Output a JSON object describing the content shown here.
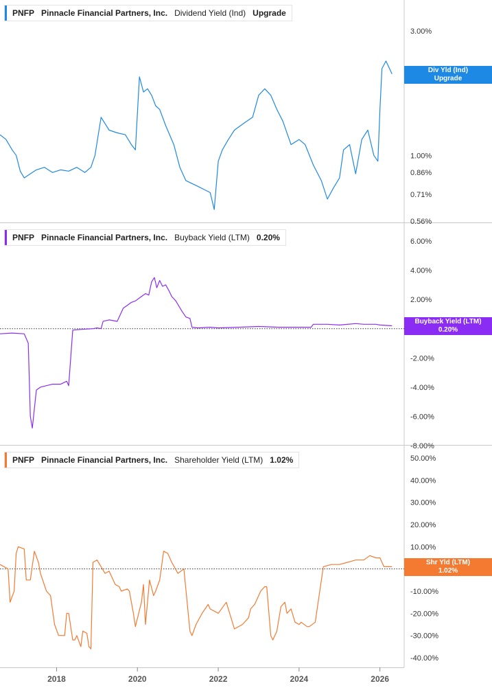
{
  "chart_data": [
    {
      "type": "line",
      "ticker": "PNFP",
      "company": "Pinnacle Financial Partners, Inc.",
      "metric": "Dividend Yield (Ind)",
      "value": "Upgrade",
      "tag_label": "Div Yld (Ind)",
      "tag_value": "Upgrade",
      "color": "#1e88e5",
      "scale": "log",
      "ylim": [
        0.56,
        4.0
      ],
      "yticks": [
        {
          "v": 3.0,
          "label": "3.00%"
        },
        {
          "v": 1.0,
          "label": "1.00%"
        },
        {
          "v": 0.86,
          "label": "0.86%"
        },
        {
          "v": 0.71,
          "label": "0.71%"
        },
        {
          "v": 0.56,
          "label": "0.56%"
        }
      ],
      "x": [
        2016.6,
        2016.75,
        2016.9,
        2017.0,
        2017.1,
        2017.2,
        2017.35,
        2017.5,
        2017.7,
        2017.9,
        2018.1,
        2018.3,
        2018.5,
        2018.7,
        2018.85,
        2018.95,
        2019.1,
        2019.3,
        2019.5,
        2019.7,
        2019.85,
        2019.95,
        2020.05,
        2020.15,
        2020.25,
        2020.35,
        2020.45,
        2020.55,
        2020.7,
        2020.9,
        2021.05,
        2021.2,
        2021.35,
        2021.5,
        2021.65,
        2021.8,
        2021.9,
        2022.0,
        2022.1,
        2022.25,
        2022.4,
        2022.55,
        2022.7,
        2022.85,
        2023.0,
        2023.15,
        2023.3,
        2023.45,
        2023.6,
        2023.8,
        2024.0,
        2024.15,
        2024.35,
        2024.55,
        2024.7,
        2024.85,
        2025.0,
        2025.1,
        2025.25,
        2025.4,
        2025.55,
        2025.7,
        2025.85,
        2025.95,
        2026.0,
        2026.05,
        2026.15,
        2026.3
      ],
      "values": [
        1.2,
        1.15,
        1.05,
        1.0,
        0.87,
        0.82,
        0.85,
        0.88,
        0.9,
        0.86,
        0.88,
        0.87,
        0.9,
        0.86,
        0.9,
        1.0,
        1.4,
        1.25,
        1.22,
        1.2,
        1.1,
        1.05,
        2.0,
        1.75,
        1.8,
        1.7,
        1.55,
        1.5,
        1.3,
        1.1,
        0.9,
        0.8,
        0.78,
        0.76,
        0.74,
        0.72,
        0.62,
        0.95,
        1.05,
        1.15,
        1.25,
        1.3,
        1.35,
        1.4,
        1.7,
        1.8,
        1.7,
        1.5,
        1.35,
        1.1,
        1.15,
        1.1,
        0.92,
        0.8,
        0.68,
        0.75,
        0.82,
        1.05,
        1.1,
        0.85,
        1.15,
        1.25,
        1.0,
        0.95,
        1.5,
        2.15,
        2.3,
        2.05
      ],
      "baseline": null
    },
    {
      "type": "line",
      "ticker": "PNFP",
      "company": "Pinnacle Financial Partners, Inc.",
      "metric": "Buyback Yield (LTM)",
      "value": "0.20%",
      "tag_label": "Buyback Yield (LTM)",
      "tag_value": "0.20%",
      "color": "#8b2cf5",
      "scale": "linear",
      "ylim": [
        -8.0,
        6.0
      ],
      "yticks": [
        {
          "v": 6,
          "label": "6.00%"
        },
        {
          "v": 4,
          "label": "4.00%"
        },
        {
          "v": 2,
          "label": "2.00%"
        },
        {
          "v": 0,
          "label": "0.00%"
        },
        {
          "v": -2,
          "label": "-2.00%"
        },
        {
          "v": -4,
          "label": "-4.00%"
        },
        {
          "v": -6,
          "label": "-6.00%"
        },
        {
          "v": -8,
          "label": "-8.00%"
        }
      ],
      "x": [
        2016.6,
        2016.9,
        2017.2,
        2017.3,
        2017.35,
        2017.4,
        2017.5,
        2017.6,
        2017.75,
        2017.9,
        2018.1,
        2018.25,
        2018.3,
        2018.4,
        2018.6,
        2018.9,
        2019.0,
        2019.1,
        2019.15,
        2019.3,
        2019.5,
        2019.65,
        2019.75,
        2019.85,
        2019.95,
        2020.05,
        2020.15,
        2020.2,
        2020.28,
        2020.35,
        2020.42,
        2020.48,
        2020.55,
        2020.62,
        2020.7,
        2020.78,
        2020.85,
        2020.95,
        2021.1,
        2021.2,
        2021.3,
        2021.35,
        2021.5,
        2021.8,
        2022.0,
        2022.5,
        2023.0,
        2023.5,
        2024.0,
        2024.3,
        2024.35,
        2024.7,
        2025.0,
        2025.4,
        2025.6,
        2025.9,
        2026.0,
        2026.3
      ],
      "values": [
        -0.35,
        -0.3,
        -0.35,
        -1.0,
        -6.0,
        -6.8,
        -4.2,
        -4.0,
        -3.9,
        -3.8,
        -3.8,
        -3.6,
        -3.9,
        -0.1,
        -0.05,
        0.0,
        0.05,
        0.0,
        0.5,
        0.6,
        0.5,
        1.4,
        1.6,
        1.8,
        1.9,
        2.1,
        2.3,
        2.4,
        2.3,
        3.2,
        3.5,
        2.8,
        3.3,
        2.9,
        3.0,
        2.6,
        2.2,
        1.9,
        1.2,
        0.8,
        0.7,
        0.1,
        0.05,
        0.1,
        0.05,
        0.1,
        0.15,
        0.1,
        0.1,
        0.1,
        0.3,
        0.3,
        0.25,
        0.35,
        0.3,
        0.3,
        0.25,
        0.2
      ],
      "baseline": 0
    },
    {
      "type": "line",
      "ticker": "PNFP",
      "company": "Pinnacle Financial Partners, Inc.",
      "metric": "Shareholder Yield (LTM)",
      "value": "1.02%",
      "tag_label": "Shr Yld (LTM)",
      "tag_value": "1.02%",
      "color": "#f47a32",
      "scale": "linear",
      "ylim": [
        -41.0,
        52.0
      ],
      "yticks": [
        {
          "v": 50,
          "label": "50.00%"
        },
        {
          "v": 40,
          "label": "40.00%"
        },
        {
          "v": 30,
          "label": "30.00%"
        },
        {
          "v": 20,
          "label": "20.00%"
        },
        {
          "v": 10,
          "label": "10.00%"
        },
        {
          "v": 0,
          "label": "0.00%"
        },
        {
          "v": -10,
          "label": "-10.00%"
        },
        {
          "v": -20,
          "label": "-20.00%"
        },
        {
          "v": -30,
          "label": "-30.00%"
        },
        {
          "v": -40,
          "label": "-40.00%"
        }
      ],
      "x": [
        2016.6,
        2016.8,
        2016.85,
        2016.95,
        2017.0,
        2017.05,
        2017.2,
        2017.25,
        2017.35,
        2017.45,
        2017.55,
        2017.6,
        2017.75,
        2017.85,
        2017.95,
        2018.05,
        2018.1,
        2018.2,
        2018.25,
        2018.3,
        2018.4,
        2018.45,
        2018.5,
        2018.6,
        2018.65,
        2018.75,
        2018.8,
        2018.85,
        2018.9,
        2019.0,
        2019.2,
        2019.3,
        2019.45,
        2019.55,
        2019.6,
        2019.75,
        2019.8,
        2019.9,
        2019.95,
        2020.1,
        2020.15,
        2020.2,
        2020.3,
        2020.4,
        2020.45,
        2020.55,
        2020.65,
        2020.75,
        2020.85,
        2021.0,
        2021.15,
        2021.3,
        2021.35,
        2021.45,
        2021.6,
        2021.75,
        2021.8,
        2022.0,
        2022.2,
        2022.4,
        2022.6,
        2022.75,
        2022.8,
        2022.9,
        2023.05,
        2023.15,
        2023.2,
        2023.3,
        2023.35,
        2023.45,
        2023.55,
        2023.65,
        2023.7,
        2023.8,
        2023.9,
        2024.0,
        2024.05,
        2024.2,
        2024.25,
        2024.4,
        2024.6,
        2024.8,
        2025.0,
        2025.2,
        2025.4,
        2025.6,
        2025.75,
        2025.9,
        2025.95,
        2026.0,
        2026.1,
        2026.3
      ],
      "values": [
        2,
        0,
        -15,
        -10,
        7,
        10,
        9,
        -5,
        -5,
        8,
        3,
        -2,
        -10,
        -12,
        -25,
        -30,
        -30,
        -30,
        -20,
        -20,
        -32,
        -32,
        -30,
        -35,
        -28,
        -29,
        -35,
        -36,
        3,
        4,
        -2,
        -1,
        -7,
        -8,
        -10,
        -9,
        -10,
        -20,
        -26,
        -15,
        -7,
        -25,
        -5,
        -12,
        -10,
        -5,
        8,
        7,
        3,
        -2,
        0,
        -28,
        -30,
        -25,
        -20,
        -16,
        -18,
        -20,
        -15,
        -27,
        -25,
        -22,
        -18,
        -16,
        -10,
        -8,
        -8,
        -30,
        -32,
        -28,
        -17,
        -15,
        -20,
        -18,
        -24,
        -25,
        -24,
        -26,
        -26,
        -24,
        1,
        2,
        2,
        3,
        4,
        4,
        6,
        5,
        5,
        5,
        1,
        1
      ],
      "baseline": 0
    }
  ],
  "x_axis": {
    "ticks": [
      {
        "v": 2018,
        "label": "2018"
      },
      {
        "v": 2020,
        "label": "2020"
      },
      {
        "v": 2022,
        "label": "2022"
      },
      {
        "v": 2024,
        "label": "2024"
      },
      {
        "v": 2026,
        "label": "2026"
      }
    ]
  }
}
